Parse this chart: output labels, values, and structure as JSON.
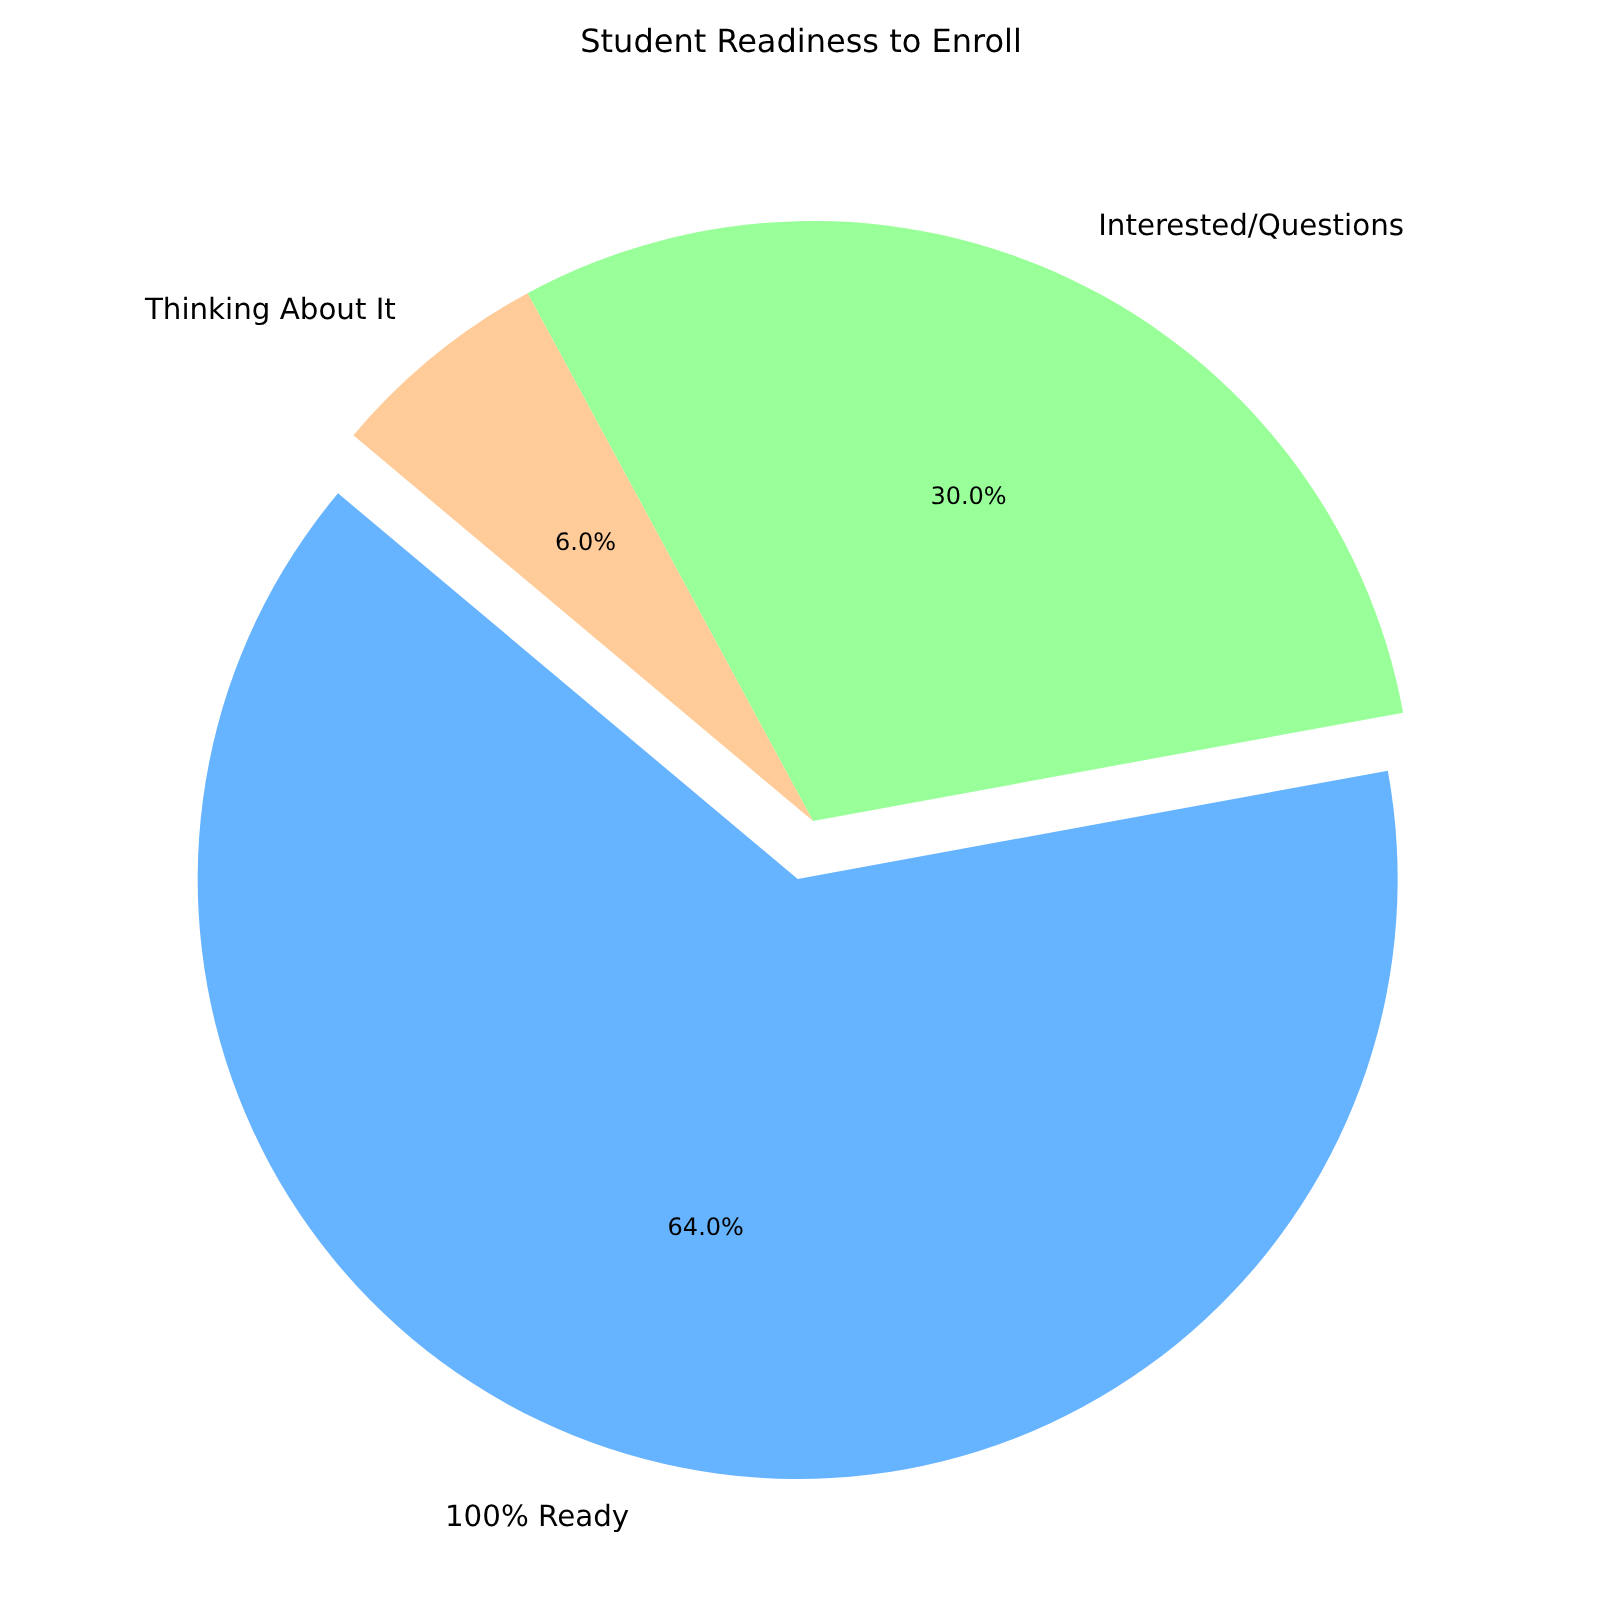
{
  "chart_data": {
    "type": "pie",
    "title": "Student Readiness to Enroll",
    "categories": [
      "100% Ready",
      "Interested/Questions",
      "Thinking About It"
    ],
    "values": [
      64,
      30,
      6
    ],
    "colors": [
      "#66b3ff",
      "#99ff99",
      "#ffcc99"
    ],
    "value_labels": [
      "64.0%",
      "30.0%",
      "6.0%"
    ]
  }
}
